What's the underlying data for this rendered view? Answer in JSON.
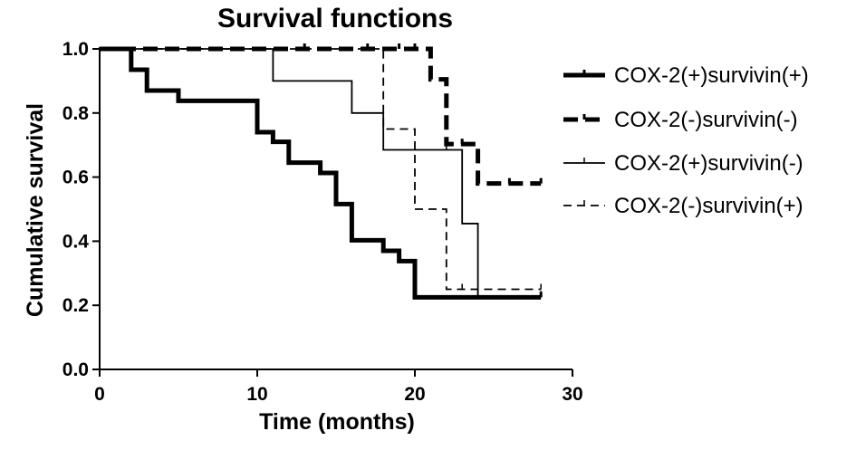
{
  "chart_data": {
    "type": "line",
    "title": "Survival functions",
    "xlabel": "Time (months)",
    "ylabel": "Cumulative survival",
    "xlim": [
      0,
      30
    ],
    "ylim": [
      0,
      1.0
    ],
    "xticks": [
      0,
      10,
      20,
      30
    ],
    "yticks": [
      0.0,
      0.2,
      0.4,
      0.6,
      0.8,
      1.0
    ],
    "xtick_labels": [
      "0",
      "10",
      "20",
      "30"
    ],
    "ytick_labels": [
      "0.0",
      "0.2",
      "0.4",
      "0.6",
      "0.8",
      "1.0"
    ],
    "grid": false,
    "legend_position": "right",
    "series": [
      {
        "name": "COX-2(+)survivin(+)",
        "style": "thick-solid",
        "color": "#000000",
        "steps": [
          [
            0,
            1.0
          ],
          [
            2,
            0.935
          ],
          [
            3,
            0.87
          ],
          [
            5,
            0.838
          ],
          [
            10,
            0.74
          ],
          [
            11,
            0.71
          ],
          [
            12,
            0.645
          ],
          [
            14,
            0.613
          ],
          [
            15,
            0.516
          ],
          [
            16,
            0.403
          ],
          [
            18,
            0.37
          ],
          [
            19,
            0.338
          ],
          [
            20,
            0.225
          ],
          [
            28,
            0.225
          ]
        ],
        "censored": [
          [
            28,
            0.225
          ]
        ]
      },
      {
        "name": "COX-2(-)survivin(-)",
        "style": "thick-dashed",
        "color": "#000000",
        "steps": [
          [
            0,
            1.0
          ],
          [
            21,
            0.905
          ],
          [
            22,
            0.703
          ],
          [
            24,
            0.58
          ],
          [
            28,
            0.58
          ]
        ],
        "censored": [
          [
            13,
            1.0
          ],
          [
            17,
            1.0
          ],
          [
            19,
            1.0
          ],
          [
            20,
            1.0
          ],
          [
            23,
            0.703
          ],
          [
            26,
            0.58
          ],
          [
            28,
            0.58
          ]
        ]
      },
      {
        "name": "COX-2(+)survivin(-)",
        "style": "thin-solid",
        "color": "#000000",
        "steps": [
          [
            0,
            1.0
          ],
          [
            11,
            0.9
          ],
          [
            16,
            0.8
          ],
          [
            18,
            0.685
          ],
          [
            23,
            0.455
          ],
          [
            24,
            0.228
          ],
          [
            28,
            0.228
          ]
        ],
        "censored": [
          [
            22,
            0.685
          ],
          [
            24,
            0.228
          ],
          [
            28,
            0.228
          ]
        ]
      },
      {
        "name": "COX-2(-)survivin(+)",
        "style": "thin-dashed",
        "color": "#000000",
        "steps": [
          [
            0,
            1.0
          ],
          [
            18,
            0.75
          ],
          [
            20,
            0.5
          ],
          [
            22,
            0.25
          ],
          [
            28,
            0.25
          ]
        ],
        "censored": [
          [
            23,
            0.25
          ],
          [
            28,
            0.25
          ]
        ]
      }
    ]
  }
}
